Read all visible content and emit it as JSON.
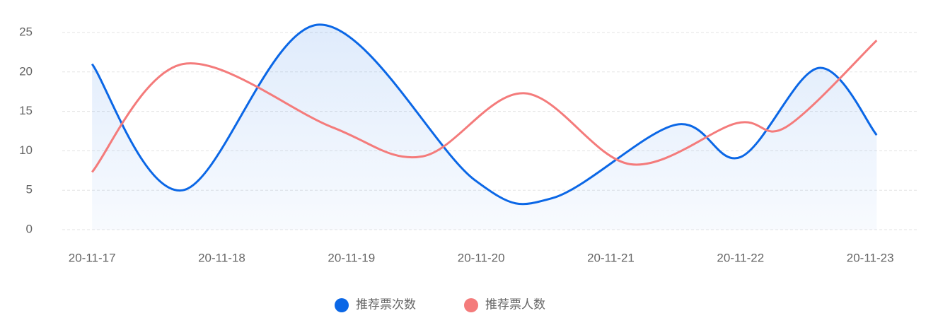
{
  "chart_data": {
    "type": "line",
    "xticks": [
      {
        "value": 0,
        "label": "20-11-17"
      },
      {
        "value": 1,
        "label": "20-11-18"
      },
      {
        "value": 2,
        "label": "20-11-19"
      },
      {
        "value": 3,
        "label": "20-11-20"
      },
      {
        "value": 4,
        "label": "20-11-21"
      },
      {
        "value": 5,
        "label": "20-11-22"
      },
      {
        "value": 6,
        "label": "20-11-23"
      }
    ],
    "xlim": [
      -0.23,
      6.37
    ],
    "ylim": [
      0,
      25
    ],
    "yticks": [
      0,
      5,
      10,
      15,
      20,
      25
    ],
    "grid": true,
    "series": [
      {
        "name": "推荐票次数",
        "color": "#0b67e6",
        "area": true,
        "x": [
          0,
          0.7,
          1.75,
          2.95,
          3.55,
          4.5,
          5.0,
          5.6,
          6.05
        ],
        "values": [
          21,
          5,
          26,
          6.3,
          4,
          13.3,
          9.2,
          20.5,
          12
        ]
      },
      {
        "name": "推荐票人数",
        "color": "#f47b7b",
        "area": false,
        "x": [
          0,
          0.7,
          1.85,
          2.55,
          3.33,
          4.15,
          4.97,
          5.35,
          6.05
        ],
        "values": [
          7.3,
          21,
          13,
          9.3,
          17.3,
          8.3,
          13.5,
          13,
          24
        ]
      }
    ],
    "legend": "bottom"
  }
}
